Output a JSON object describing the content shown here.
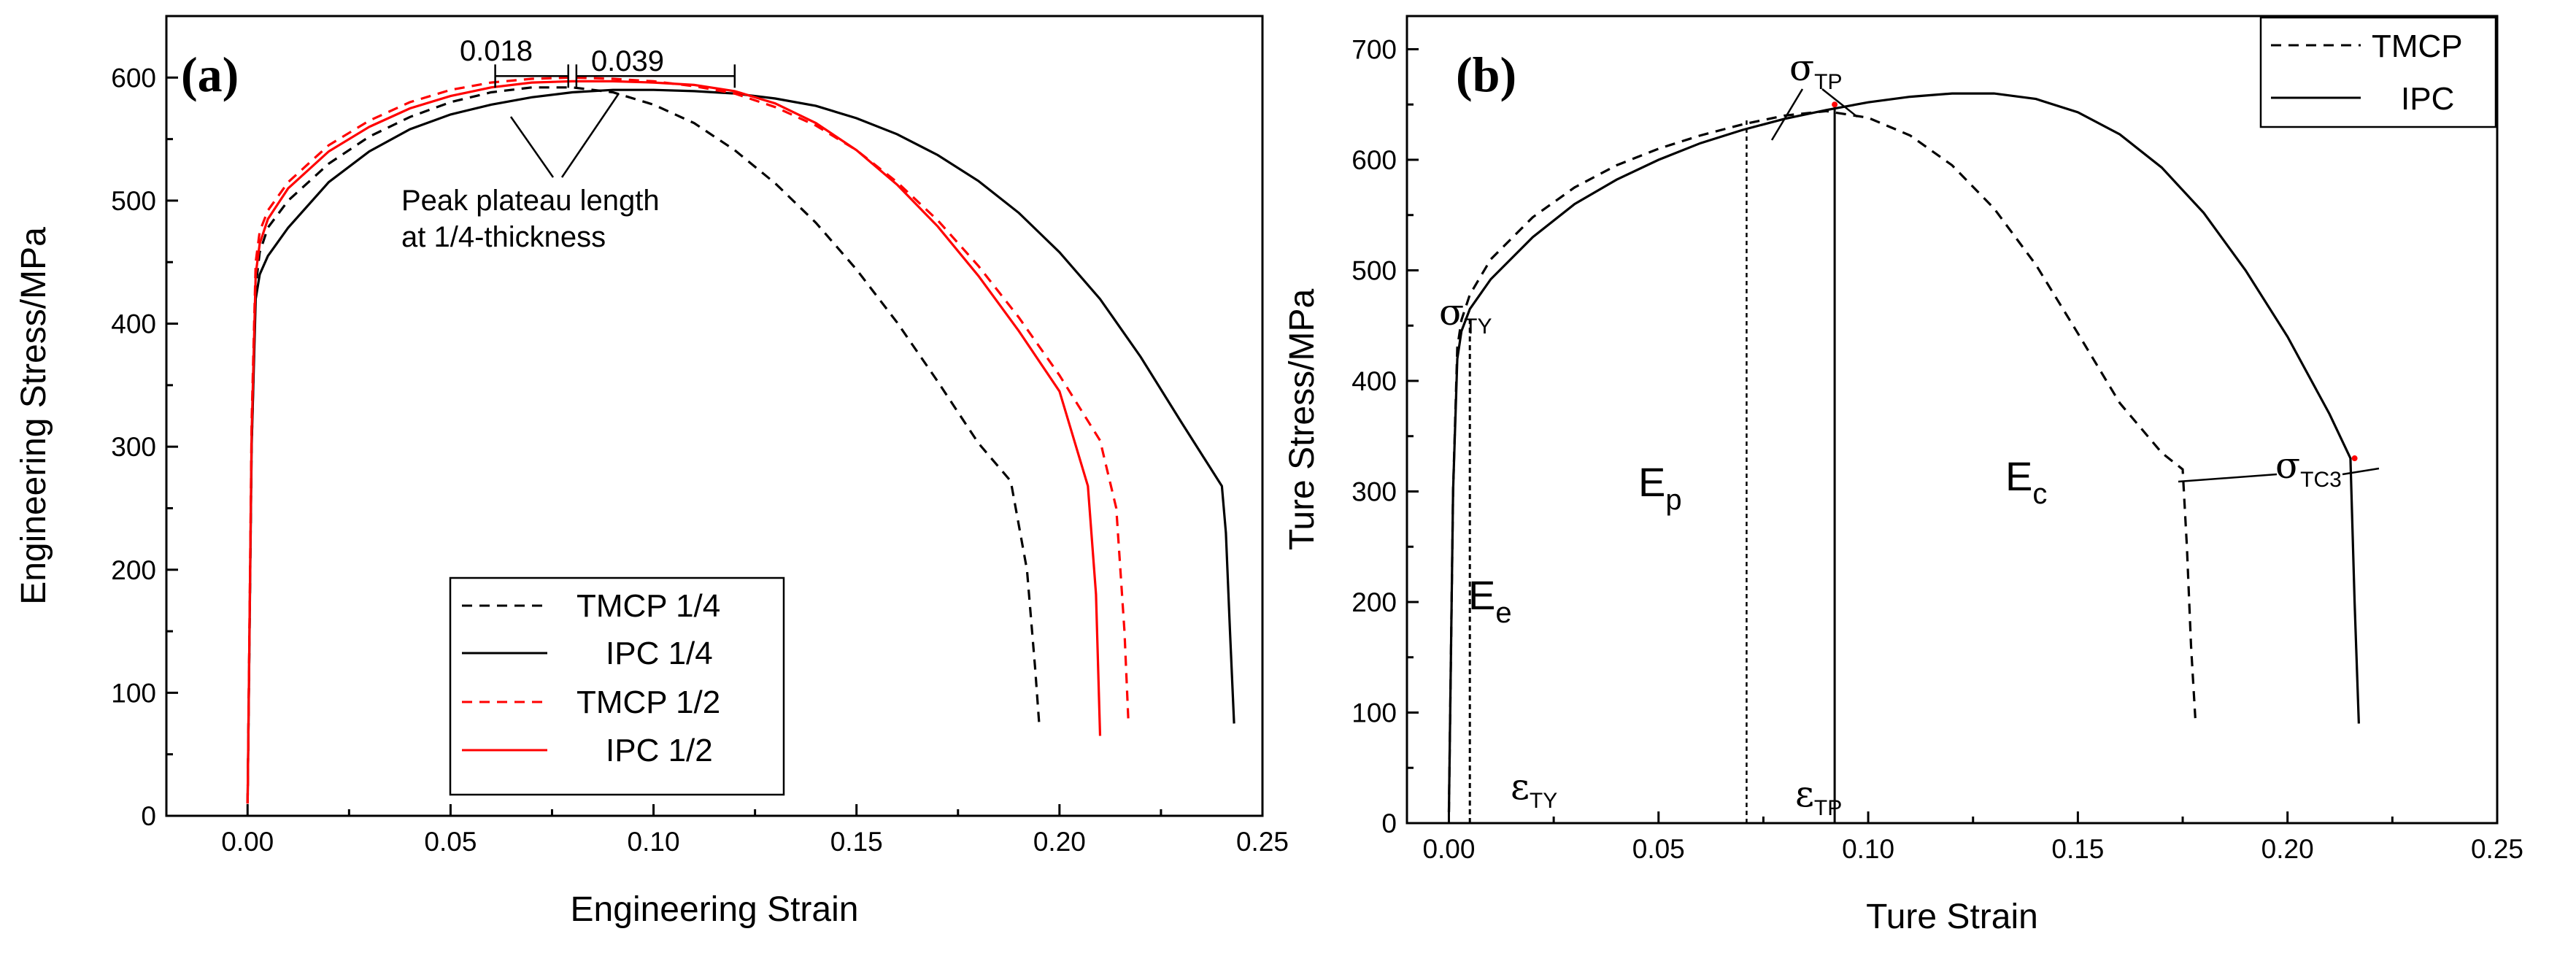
{
  "chart_data": [
    {
      "type": "line",
      "panel_label": "(a)",
      "xlabel": "Engineering Strain",
      "ylabel": "Engineering Stress/MPa",
      "xlim": [
        -0.02,
        0.25
      ],
      "ylim": [
        0,
        650
      ],
      "xticks": [
        0.0,
        0.05,
        0.1,
        0.15,
        0.2,
        0.25
      ],
      "xtick_labels": [
        "0.00",
        "0.05",
        "0.10",
        "0.15",
        "0.20",
        "0.25"
      ],
      "yticks": [
        0,
        100,
        200,
        300,
        400,
        500,
        600
      ],
      "ytick_labels": [
        "0",
        "100",
        "200",
        "300",
        "400",
        "500",
        "600"
      ],
      "legend_position": "bottom-center",
      "series": [
        {
          "name": "TMCP 1/4",
          "color": "#000000",
          "dash": "dashed",
          "x": [
            0,
            0.001,
            0.002,
            0.003,
            0.005,
            0.01,
            0.02,
            0.03,
            0.04,
            0.05,
            0.06,
            0.07,
            0.08,
            0.09,
            0.1,
            0.11,
            0.12,
            0.13,
            0.14,
            0.15,
            0.16,
            0.17,
            0.18,
            0.188,
            0.192,
            0.194,
            0.195
          ],
          "y": [
            10,
            300,
            430,
            458,
            478,
            500,
            530,
            552,
            568,
            580,
            588,
            592,
            592,
            588,
            578,
            563,
            541,
            514,
            482,
            444,
            401,
            353,
            303,
            272,
            200,
            120,
            75
          ]
        },
        {
          "name": "IPC 1/4",
          "color": "#000000",
          "dash": "solid",
          "x": [
            0,
            0.001,
            0.002,
            0.003,
            0.005,
            0.01,
            0.02,
            0.03,
            0.04,
            0.05,
            0.06,
            0.07,
            0.08,
            0.09,
            0.1,
            0.11,
            0.12,
            0.13,
            0.14,
            0.15,
            0.16,
            0.17,
            0.18,
            0.19,
            0.2,
            0.21,
            0.22,
            0.23,
            0.24,
            0.241,
            0.242,
            0.243
          ],
          "y": [
            10,
            300,
            420,
            440,
            455,
            478,
            515,
            540,
            558,
            570,
            578,
            584,
            588,
            590,
            590,
            589,
            587,
            583,
            577,
            567,
            554,
            537,
            516,
            490,
            458,
            420,
            373,
            320,
            268,
            230,
            150,
            75
          ]
        },
        {
          "name": "TMCP 1/2",
          "color": "#ff0000",
          "dash": "dashed",
          "x": [
            0,
            0.001,
            0.002,
            0.003,
            0.005,
            0.01,
            0.02,
            0.03,
            0.04,
            0.05,
            0.06,
            0.07,
            0.08,
            0.09,
            0.1,
            0.11,
            0.12,
            0.13,
            0.14,
            0.15,
            0.16,
            0.17,
            0.18,
            0.19,
            0.2,
            0.21,
            0.214,
            0.216,
            0.217
          ],
          "y": [
            10,
            320,
            450,
            475,
            492,
            515,
            545,
            565,
            580,
            590,
            596,
            599,
            600,
            599,
            597,
            593,
            587,
            576,
            561,
            541,
            515,
            484,
            447,
            405,
            358,
            305,
            250,
            150,
            75
          ]
        },
        {
          "name": "IPC 1/2",
          "color": "#ff0000",
          "dash": "solid",
          "x": [
            0,
            0.001,
            0.002,
            0.003,
            0.005,
            0.01,
            0.02,
            0.03,
            0.04,
            0.05,
            0.06,
            0.07,
            0.08,
            0.09,
            0.1,
            0.11,
            0.12,
            0.13,
            0.14,
            0.15,
            0.16,
            0.17,
            0.18,
            0.19,
            0.2,
            0.207,
            0.209,
            0.21
          ],
          "y": [
            10,
            310,
            440,
            465,
            485,
            510,
            540,
            560,
            575,
            585,
            592,
            596,
            597,
            597,
            596,
            594,
            589,
            579,
            563,
            541,
            513,
            479,
            439,
            394,
            345,
            268,
            180,
            65
          ]
        }
      ],
      "annotations": {
        "bracket_labels": [
          "0.018",
          "0.039"
        ],
        "brackets": [
          {
            "x_start": 0.061,
            "x_end": 0.079,
            "y": 600
          },
          {
            "x_start": 0.081,
            "x_end": 0.12,
            "y": 600
          }
        ],
        "note_lines": [
          "Peak plateau length",
          "at 1/4-thickness"
        ]
      }
    },
    {
      "type": "line",
      "panel_label": "(b)",
      "xlabel": "Ture Strain",
      "ylabel": "Ture Stress/MPa",
      "xlim": [
        -0.01,
        0.25
      ],
      "ylim": [
        0,
        730
      ],
      "xticks": [
        0.0,
        0.05,
        0.1,
        0.15,
        0.2,
        0.25
      ],
      "xtick_labels": [
        "0.00",
        "0.05",
        "0.10",
        "0.15",
        "0.20",
        "0.25"
      ],
      "yticks": [
        0,
        100,
        200,
        300,
        400,
        500,
        600,
        700
      ],
      "ytick_labels": [
        "0",
        "100",
        "200",
        "300",
        "400",
        "500",
        "600",
        "700"
      ],
      "legend_position": "top-right",
      "series": [
        {
          "name": "TMCP",
          "color": "#000000",
          "dash": "dashed",
          "x": [
            0,
            0.001,
            0.002,
            0.003,
            0.005,
            0.01,
            0.02,
            0.03,
            0.04,
            0.05,
            0.06,
            0.07,
            0.08,
            0.09,
            0.1,
            0.11,
            0.12,
            0.13,
            0.14,
            0.15,
            0.16,
            0.17,
            0.175,
            0.176,
            0.177,
            0.178
          ],
          "y": [
            10,
            300,
            430,
            455,
            478,
            510,
            548,
            575,
            595,
            610,
            622,
            632,
            640,
            644,
            638,
            622,
            595,
            556,
            505,
            443,
            380,
            335,
            320,
            250,
            160,
            95
          ]
        },
        {
          "name": "IPC",
          "color": "#000000",
          "dash": "solid",
          "x": [
            0,
            0.001,
            0.002,
            0.003,
            0.005,
            0.01,
            0.02,
            0.03,
            0.04,
            0.05,
            0.06,
            0.07,
            0.08,
            0.09,
            0.1,
            0.11,
            0.12,
            0.13,
            0.14,
            0.15,
            0.16,
            0.17,
            0.18,
            0.19,
            0.2,
            0.21,
            0.215,
            0.216,
            0.217
          ],
          "y": [
            10,
            300,
            420,
            445,
            465,
            492,
            530,
            560,
            582,
            600,
            615,
            627,
            637,
            645,
            652,
            657,
            660,
            660,
            655,
            643,
            623,
            593,
            552,
            500,
            440,
            370,
            330,
            200,
            90
          ]
        }
      ],
      "annotations": {
        "sigma_TY": {
          "symbol": "σ",
          "sub": "TY",
          "x": 0.004,
          "y": 458
        },
        "sigma_TP": {
          "symbol": "σ",
          "sub": "TP",
          "x": 0.092,
          "y": 650
        },
        "sigma_TC3": {
          "symbol": "σ",
          "sub": "TC3",
          "x": 0.216,
          "y": 330
        },
        "eps_TY": {
          "symbol": "ε",
          "sub": "TY",
          "x": 0.005
        },
        "eps_TP": {
          "symbol": "ε",
          "sub": "TP",
          "x": 0.092
        },
        "tmcp_peak_x": 0.071,
        "E_e": {
          "main": "E",
          "sub": "e"
        },
        "E_p": {
          "main": "E",
          "sub": "p"
        },
        "E_c": {
          "main": "E",
          "sub": "c"
        }
      }
    }
  ]
}
